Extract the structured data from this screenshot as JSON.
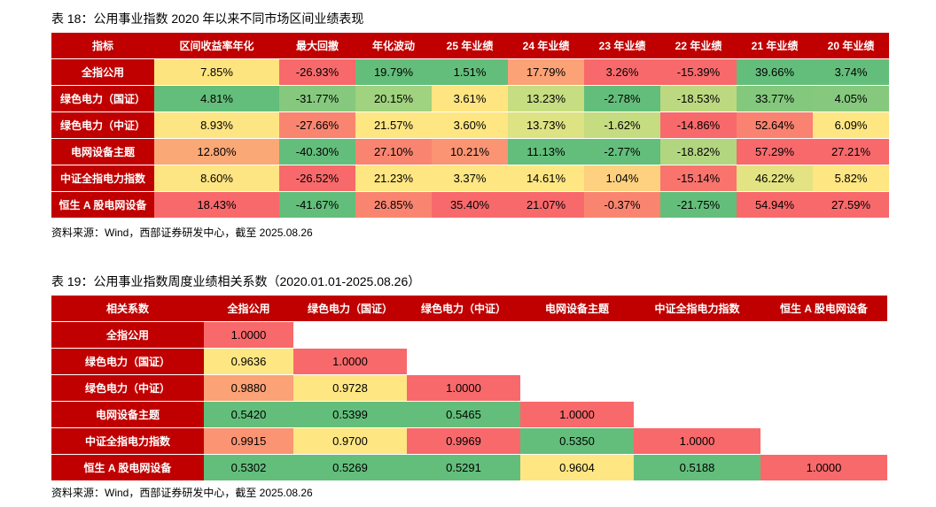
{
  "table18": {
    "title": "表 18：公用事业指数 2020 年以来不同市场区间业绩表现",
    "headers": [
      "指标",
      "区间收益率年化",
      "最大回撤",
      "年化波动",
      "25 年业绩",
      "24 年业绩",
      "23 年业绩",
      "22 年业绩",
      "21 年业绩",
      "20 年业绩"
    ],
    "rows": [
      {
        "name": "全指公用",
        "cells": [
          {
            "v": "7.85%",
            "c": "#fde47f"
          },
          {
            "v": "-26.93%",
            "c": "#f8696b"
          },
          {
            "v": "19.79%",
            "c": "#63be7b"
          },
          {
            "v": "1.51%",
            "c": "#63be7b"
          },
          {
            "v": "17.79%",
            "c": "#fba276"
          },
          {
            "v": "3.26%",
            "c": "#f8696b"
          },
          {
            "v": "-15.39%",
            "c": "#f8696b"
          },
          {
            "v": "39.66%",
            "c": "#63be7b"
          },
          {
            "v": "3.74%",
            "c": "#63be7b"
          }
        ]
      },
      {
        "name": "绿色电力（国证）",
        "cells": [
          {
            "v": "4.81%",
            "c": "#63be7b"
          },
          {
            "v": "-31.77%",
            "c": "#86c97e"
          },
          {
            "v": "20.15%",
            "c": "#a0d27f"
          },
          {
            "v": "3.61%",
            "c": "#fee582"
          },
          {
            "v": "13.23%",
            "c": "#c7dd81"
          },
          {
            "v": "-2.78%",
            "c": "#63be7b"
          },
          {
            "v": "-18.53%",
            "c": "#bcd981"
          },
          {
            "v": "33.77%",
            "c": "#84c87d"
          },
          {
            "v": "4.05%",
            "c": "#86c97e"
          }
        ]
      },
      {
        "name": "绿色电力（中证）",
        "cells": [
          {
            "v": "8.93%",
            "c": "#fee583"
          },
          {
            "v": "-27.66%",
            "c": "#f98570"
          },
          {
            "v": "21.57%",
            "c": "#fee683"
          },
          {
            "v": "3.60%",
            "c": "#fee683"
          },
          {
            "v": "13.73%",
            "c": "#dde283"
          },
          {
            "v": "-1.62%",
            "c": "#c5dc81"
          },
          {
            "v": "-14.86%",
            "c": "#f8696b"
          },
          {
            "v": "52.64%",
            "c": "#f98370"
          },
          {
            "v": "6.09%",
            "c": "#fee683"
          }
        ]
      },
      {
        "name": "电网设备主题",
        "cells": [
          {
            "v": "12.80%",
            "c": "#fba877"
          },
          {
            "v": "-40.30%",
            "c": "#63be7b"
          },
          {
            "v": "27.10%",
            "c": "#f98570"
          },
          {
            "v": "10.21%",
            "c": "#fa9473"
          },
          {
            "v": "11.13%",
            "c": "#63be7b"
          },
          {
            "v": "-2.77%",
            "c": "#63be7b"
          },
          {
            "v": "-18.82%",
            "c": "#b2d680"
          },
          {
            "v": "57.29%",
            "c": "#f8696b"
          },
          {
            "v": "27.21%",
            "c": "#f8696b"
          }
        ]
      },
      {
        "name": "中证全指电力指数",
        "cells": [
          {
            "v": "8.60%",
            "c": "#fee583"
          },
          {
            "v": "-26.52%",
            "c": "#f8696b"
          },
          {
            "v": "21.23%",
            "c": "#fee683"
          },
          {
            "v": "3.37%",
            "c": "#fee683"
          },
          {
            "v": "14.61%",
            "c": "#fee683"
          },
          {
            "v": "1.04%",
            "c": "#fdd17f"
          },
          {
            "v": "-15.14%",
            "c": "#f8746d"
          },
          {
            "v": "46.22%",
            "c": "#e4e383"
          },
          {
            "v": "5.82%",
            "c": "#fee683"
          }
        ]
      },
      {
        "name": "恒生 A 股电网设备",
        "cells": [
          {
            "v": "18.43%",
            "c": "#f8696b"
          },
          {
            "v": "-41.67%",
            "c": "#63be7b"
          },
          {
            "v": "26.85%",
            "c": "#f98570"
          },
          {
            "v": "35.40%",
            "c": "#f8696b"
          },
          {
            "v": "21.07%",
            "c": "#f8696b"
          },
          {
            "v": "-0.37%",
            "c": "#f98570"
          },
          {
            "v": "-21.75%",
            "c": "#63be7b"
          },
          {
            "v": "54.94%",
            "c": "#f8696b"
          },
          {
            "v": "27.59%",
            "c": "#f8696b"
          }
        ]
      }
    ],
    "source": "资料来源：Wind，西部证券研发中心，截至 2025.08.26"
  },
  "table19": {
    "title": "表 19：公用事业指数周度业绩相关系数（2020.01.01-2025.08.26）",
    "headers": [
      "相关系数",
      "全指公用",
      "绿色电力（国证）",
      "绿色电力（中证）",
      "电网设备主题",
      "中证全指电力指数",
      "恒生 A 股电网设备"
    ],
    "rows": [
      {
        "name": "全指公用",
        "cells": [
          {
            "v": "1.0000",
            "c": "#f8696b"
          }
        ]
      },
      {
        "name": "绿色电力（国证）",
        "cells": [
          {
            "v": "0.9636",
            "c": "#fee683"
          },
          {
            "v": "1.0000",
            "c": "#f8696b"
          }
        ]
      },
      {
        "name": "绿色电力（中证）",
        "cells": [
          {
            "v": "0.9880",
            "c": "#fba276"
          },
          {
            "v": "0.9728",
            "c": "#fee683"
          },
          {
            "v": "1.0000",
            "c": "#f8696b"
          }
        ]
      },
      {
        "name": "电网设备主题",
        "cells": [
          {
            "v": "0.5420",
            "c": "#63be7b"
          },
          {
            "v": "0.5399",
            "c": "#63be7b"
          },
          {
            "v": "0.5465",
            "c": "#63be7b"
          },
          {
            "v": "1.0000",
            "c": "#f8696b"
          }
        ]
      },
      {
        "name": "中证全指电力指数",
        "cells": [
          {
            "v": "0.9915",
            "c": "#fa9473"
          },
          {
            "v": "0.9700",
            "c": "#fee683"
          },
          {
            "v": "0.9969",
            "c": "#f8696b"
          },
          {
            "v": "0.5350",
            "c": "#63be7b"
          },
          {
            "v": "1.0000",
            "c": "#f8696b"
          }
        ]
      },
      {
        "name": "恒生 A 股电网设备",
        "cells": [
          {
            "v": "0.5302",
            "c": "#63be7b"
          },
          {
            "v": "0.5269",
            "c": "#63be7b"
          },
          {
            "v": "0.5291",
            "c": "#63be7b"
          },
          {
            "v": "0.9604",
            "c": "#fee683"
          },
          {
            "v": "0.5188",
            "c": "#63be7b"
          },
          {
            "v": "1.0000",
            "c": "#f8696b"
          }
        ]
      }
    ],
    "source": "资料来源：Wind，西部证券研发中心，截至 2025.08.26"
  }
}
